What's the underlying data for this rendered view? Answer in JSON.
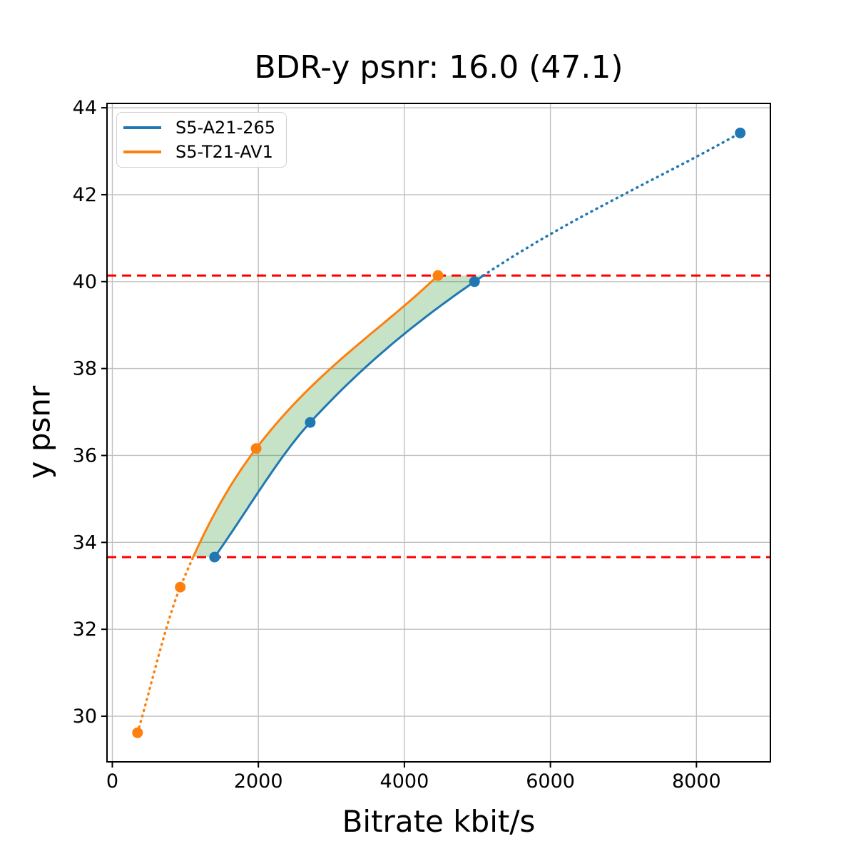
{
  "chart_data": {
    "type": "line",
    "title": "BDR-y psnr: 16.0 (47.1)",
    "xlabel": "Bitrate kbit/s",
    "ylabel": "y psnr",
    "xlim": [
      -73,
      9013
    ],
    "ylim": [
      28.95,
      44.1
    ],
    "xticks": [
      0,
      2000,
      4000,
      6000,
      8000
    ],
    "yticks": [
      30,
      32,
      34,
      36,
      38,
      40,
      42,
      44
    ],
    "grid": true,
    "grid_color": "#c0c0c0",
    "axis_color": "#000000",
    "legend_position": "upper left",
    "series": [
      {
        "name": "S5-A21-265",
        "color": "#1f77b4",
        "points": [
          [
            1400,
            33.66
          ],
          [
            2710,
            36.76
          ],
          [
            4960,
            40.0
          ],
          [
            8600,
            43.42
          ]
        ],
        "style_note": "solid inside BD overlap interval, dotted above upper bound"
      },
      {
        "name": "S5-T21-AV1",
        "color": "#ff7f0e",
        "points": [
          [
            345,
            29.62
          ],
          [
            930,
            32.97
          ],
          [
            1970,
            36.16
          ],
          [
            4460,
            40.14
          ]
        ],
        "style_note": "dotted below lower bound, solid inside BD overlap interval"
      }
    ],
    "bd_bounds": {
      "lower": 33.66,
      "upper": 40.14,
      "line_color": "#ff0000",
      "line_style": "dashed"
    },
    "shaded_region": {
      "color": "#008000",
      "opacity": 0.22,
      "description": "area between the two rate-distortion curves within the BD bounds"
    }
  }
}
